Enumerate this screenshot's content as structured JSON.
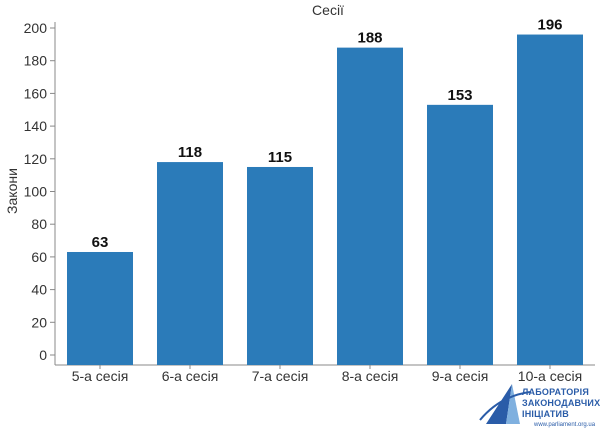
{
  "chart_data": {
    "type": "bar",
    "title": "Сесії",
    "xlabel": "",
    "ylabel": "Закони",
    "categories": [
      "5-а сесія",
      "6-а сесія",
      "7-а сесія",
      "8-а сесія",
      "9-а сесія",
      "10-а сесія"
    ],
    "values": [
      63,
      118,
      115,
      188,
      153,
      196
    ],
    "yticks": [
      0,
      20,
      40,
      60,
      80,
      100,
      120,
      140,
      160,
      180,
      200
    ],
    "ylim": [
      0,
      205
    ],
    "grid": false,
    "bar_color": "#2b7bb9"
  },
  "logo": {
    "line1": "ЛАБОРАТОРІЯ",
    "line2": "ЗАКОНОДАВЧИХ",
    "line3": "ІНІЦІАТИВ",
    "url": "www.parliament.org.ua"
  },
  "colors": {
    "bar": "#2b7bb9",
    "axis": "#888888",
    "logo": "#2a5ca8"
  }
}
